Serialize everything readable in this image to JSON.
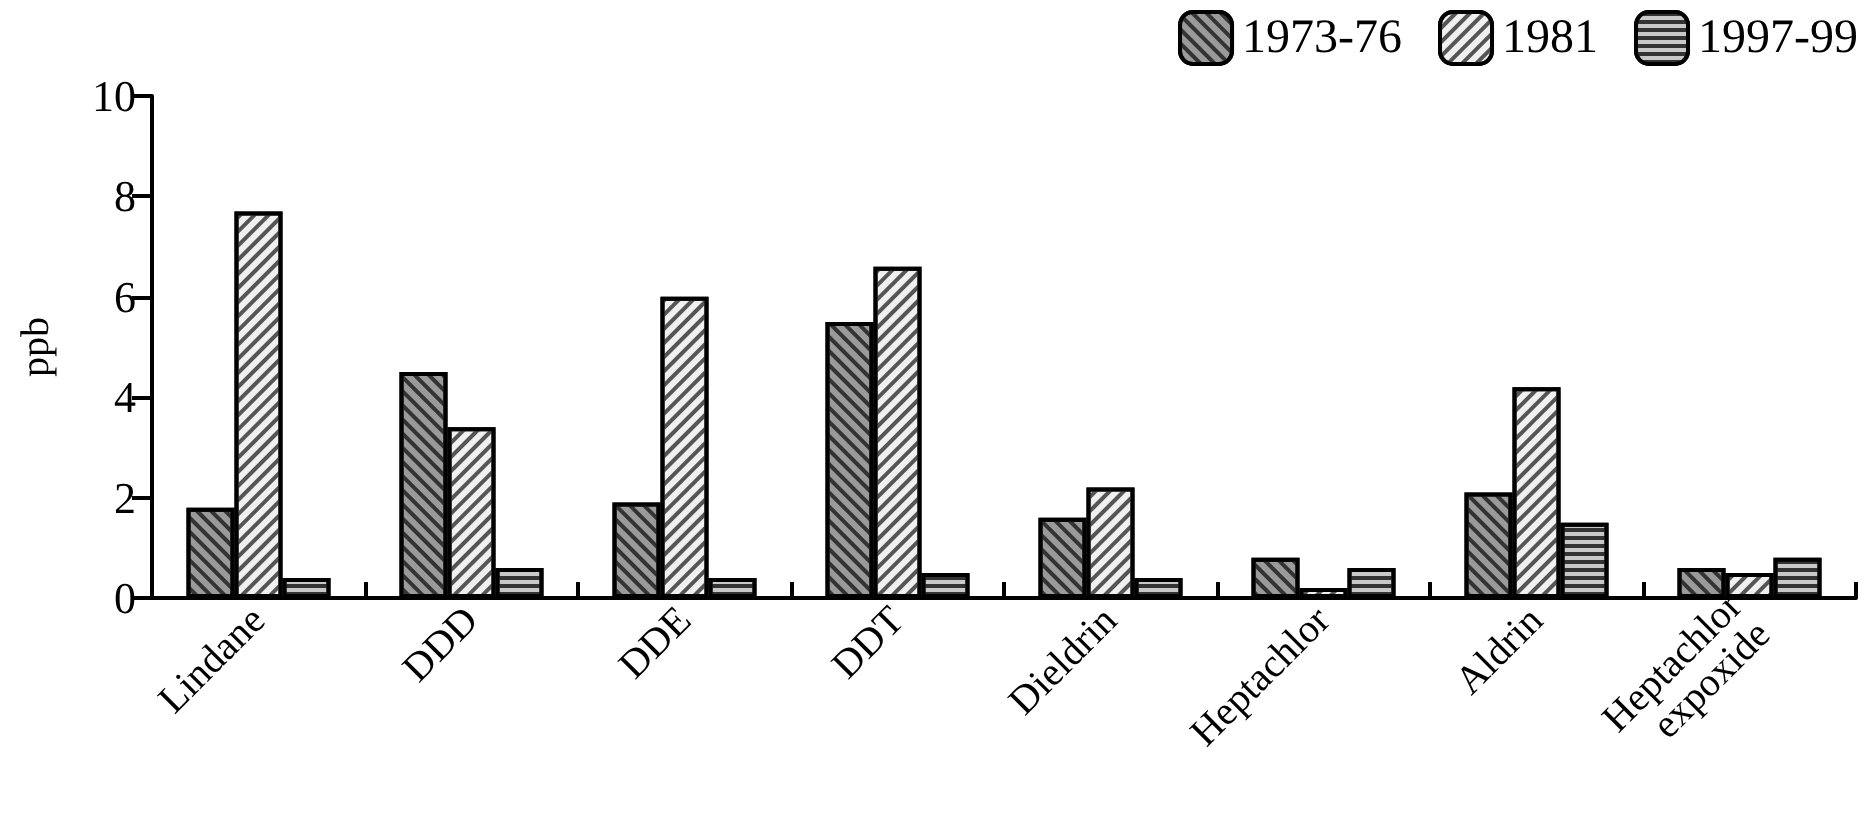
{
  "chart_data": {
    "type": "bar",
    "ylabel": "ppb",
    "categories": [
      "Lindane",
      "DDD",
      "DDE",
      "DDT",
      "Dieldrin",
      "Heptachlor",
      "Aldrin",
      "Heptachlor expoxide"
    ],
    "series": [
      {
        "name": "1973-76",
        "color": "#9a9a9a",
        "values": [
          1.8,
          4.5,
          1.9,
          5.5,
          1.6,
          0.8,
          2.1,
          0.6
        ]
      },
      {
        "name": "1981",
        "color": "#f0f0f0",
        "values": [
          7.7,
          3.4,
          6.0,
          6.6,
          2.2,
          0.2,
          4.2,
          0.5
        ]
      },
      {
        "name": "1997-99",
        "color": "#c8c8c8",
        "values": [
          0.4,
          0.6,
          0.4,
          0.5,
          0.4,
          0.6,
          1.5,
          0.8
        ]
      }
    ],
    "ylim": [
      0,
      10
    ],
    "yticks": [
      0,
      2,
      4,
      6,
      8,
      10
    ],
    "grid": false,
    "legend": "top right"
  }
}
